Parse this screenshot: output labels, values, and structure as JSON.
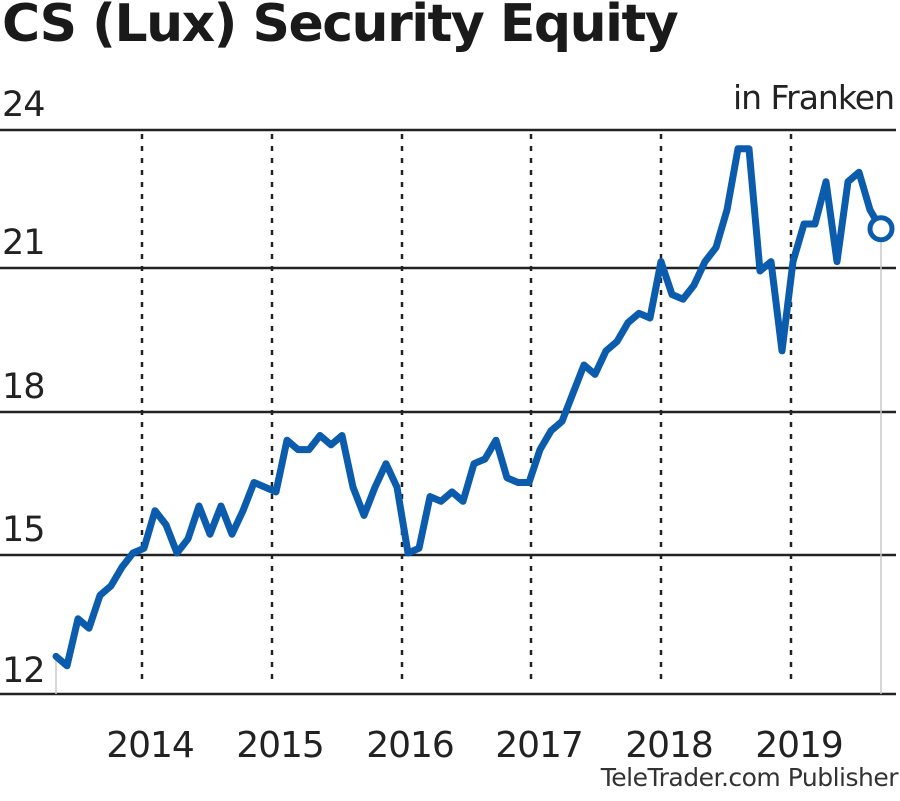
{
  "header": {
    "title": "CS (Lux) Security Equity",
    "unit": "in Franken"
  },
  "footer": {
    "credit": "TeleTrader.com Publisher"
  },
  "colors": {
    "line": "#0b5cad",
    "grid": "#222222",
    "text": "#1a1a1a"
  },
  "chart_data": {
    "type": "line",
    "title": "CS (Lux) Security Equity",
    "subtitle": "in Franken",
    "xlabel": "",
    "ylabel": "in Franken",
    "ylim": [
      12,
      24
    ],
    "yticks": [
      12,
      15,
      18,
      21,
      24
    ],
    "xticks": [
      "2014",
      "2015",
      "2016",
      "2017",
      "2018",
      "2019"
    ],
    "grid": {
      "horizontal": "solid",
      "vertical": "dashed (year boundaries)"
    },
    "legend": "none",
    "end_marker": "open circle at last value",
    "x_range": [
      "2013-06",
      "2019-09"
    ],
    "series": [
      {
        "name": "CS (Lux) Security Equity",
        "x": [
          "2013-06",
          "2013-07",
          "2013-08",
          "2013-09",
          "2013-10",
          "2013-11",
          "2013-12",
          "2014-01",
          "2014-02",
          "2014-03",
          "2014-04",
          "2014-05",
          "2014-06",
          "2014-07",
          "2014-08",
          "2014-09",
          "2014-10",
          "2014-11",
          "2014-12",
          "2015-01",
          "2015-02",
          "2015-03",
          "2015-04",
          "2015-05",
          "2015-06",
          "2015-07",
          "2015-08",
          "2015-09",
          "2015-10",
          "2015-11",
          "2015-12",
          "2016-01",
          "2016-02",
          "2016-03",
          "2016-04",
          "2016-05",
          "2016-06",
          "2016-07",
          "2016-08",
          "2016-09",
          "2016-10",
          "2016-11",
          "2016-12",
          "2017-01",
          "2017-02",
          "2017-03",
          "2017-04",
          "2017-05",
          "2017-06",
          "2017-07",
          "2017-08",
          "2017-09",
          "2017-10",
          "2017-11",
          "2017-12",
          "2018-01",
          "2018-02",
          "2018-03",
          "2018-04",
          "2018-05",
          "2018-06",
          "2018-07",
          "2018-08",
          "2018-09",
          "2018-10",
          "2018-11",
          "2018-12",
          "2019-01",
          "2019-02",
          "2019-03",
          "2019-04",
          "2019-05",
          "2019-06",
          "2019-07",
          "2019-08",
          "2019-09"
        ],
        "values": [
          12.8,
          12.6,
          13.6,
          13.4,
          14.1,
          14.3,
          14.7,
          15.0,
          15.1,
          15.9,
          15.6,
          15.0,
          15.3,
          16.0,
          15.4,
          16.0,
          15.4,
          15.9,
          16.5,
          16.4,
          16.3,
          17.4,
          17.2,
          17.2,
          17.5,
          17.3,
          17.5,
          16.4,
          15.8,
          16.4,
          16.9,
          16.4,
          15.0,
          15.1,
          16.2,
          16.1,
          16.3,
          16.1,
          16.9,
          17.0,
          17.4,
          16.6,
          16.5,
          16.5,
          17.2,
          17.6,
          17.8,
          18.4,
          19.0,
          18.8,
          19.3,
          19.5,
          19.9,
          20.1,
          20.0,
          21.2,
          20.5,
          20.4,
          20.7,
          21.2,
          21.5,
          22.3,
          23.6,
          23.6,
          21.0,
          21.2,
          19.3,
          21.2,
          22.0,
          22.0,
          22.9,
          21.2,
          22.9,
          23.1,
          22.3,
          21.9
        ]
      }
    ],
    "last_value": 21.9
  }
}
